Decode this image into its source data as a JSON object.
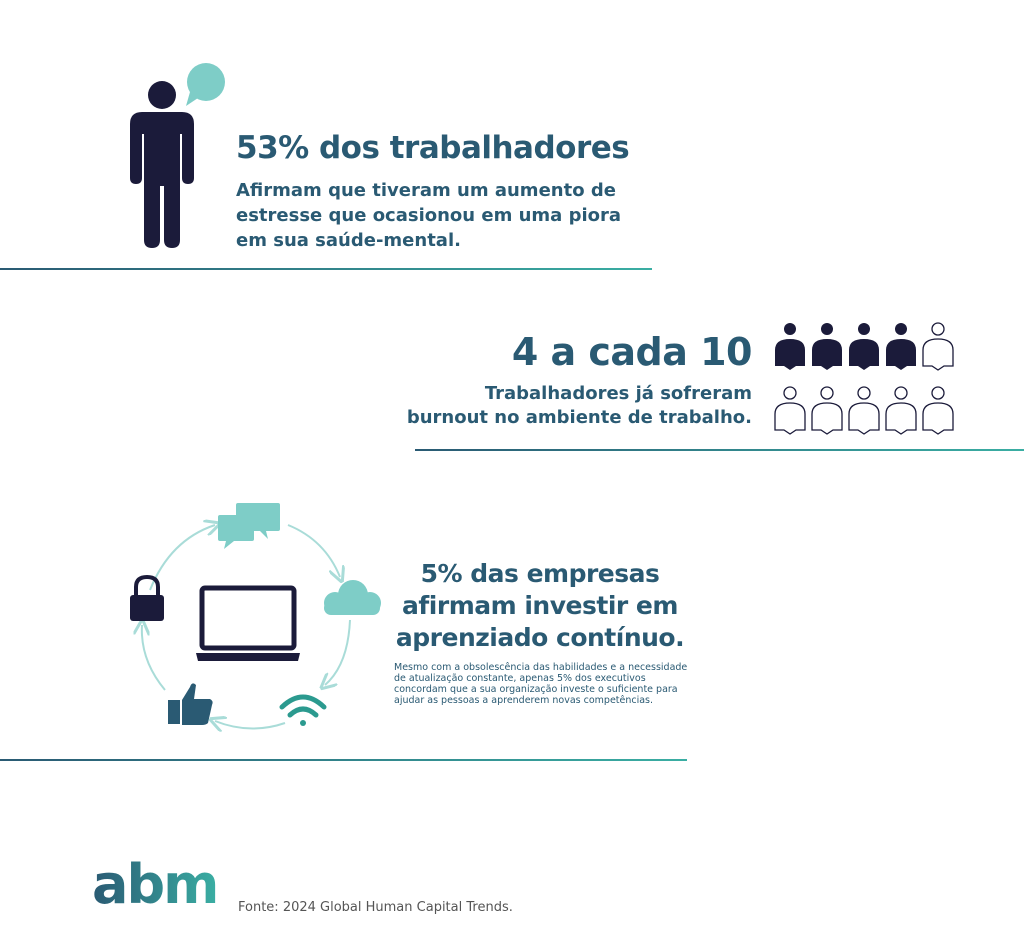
{
  "section1": {
    "headline": "53% dos trabalhadores",
    "body": "Afirmam que tiveram um aumento de\nestresse que ocasionou em uma piora\nem sua saúde-mental."
  },
  "section2": {
    "headline": "4 a cada 10",
    "body": "Trabalhadores já sofreram\nburnout no ambiente de trabalho.",
    "people_icons": {
      "filled": 4,
      "total": 10
    }
  },
  "section3": {
    "headline": "5% das empresas\nafirmam investir em\naprenziado contínuo.",
    "body": "Mesmo com a obsolescência das habilidades e a necessidade\nde atualização constante, apenas 5% dos executivos\nconcordam que a sua organização investe o suficiente para\najudar as pessoas a aprenderem novas competências.",
    "cycle_icons": [
      "chat-bubbles-icon",
      "cloud-icon",
      "wifi-icon",
      "thumbs-up-icon",
      "padlock-icon"
    ]
  },
  "footer": {
    "logo": "abm",
    "source": "Fonte: 2024 Global Human Capital Trends."
  },
  "colors": {
    "navy": "#1b1b3a",
    "teal": "#3aaea3",
    "light_teal": "#7ecdc7",
    "dark_blue_text": "#2a5a73"
  }
}
